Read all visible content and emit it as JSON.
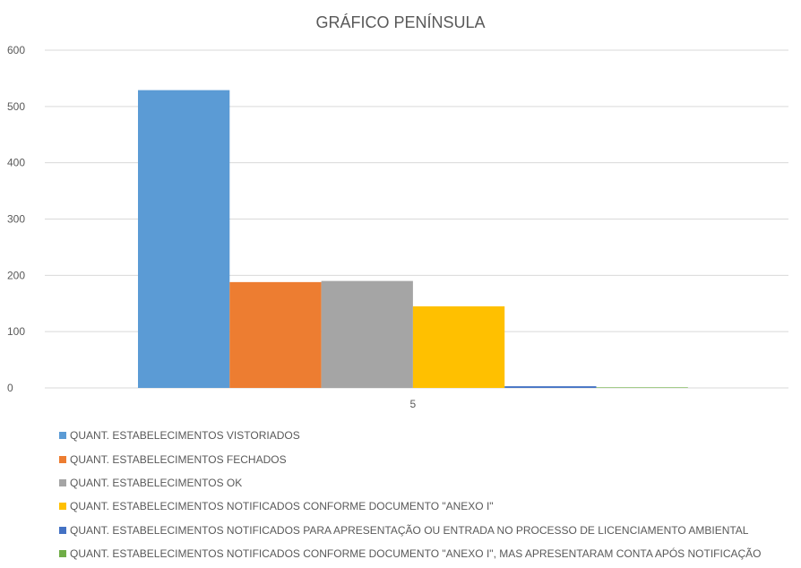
{
  "chart_data": {
    "type": "bar",
    "title": "GRÁFICO PENÍNSULA",
    "categories": [
      "5"
    ],
    "ylim": [
      0,
      600
    ],
    "yticks": [
      0,
      100,
      200,
      300,
      400,
      500,
      600
    ],
    "grid": true,
    "legend_position": "bottom",
    "series": [
      {
        "name": "QUANT. ESTABELECIMENTOS VISTORIADOS",
        "values": [
          529
        ],
        "color": "#5b9bd5"
      },
      {
        "name": "QUANT. ESTABELECIMENTOS FECHADOS",
        "values": [
          188
        ],
        "color": "#ed7d31"
      },
      {
        "name": "QUANT. ESTABELECIMENTOS OK",
        "values": [
          190
        ],
        "color": "#a5a5a5"
      },
      {
        "name": "QUANT. ESTABELECIMENTOS NOTIFICADOS CONFORME DOCUMENTO \"ANEXO I\"",
        "values": [
          145
        ],
        "color": "#ffc000"
      },
      {
        "name": "QUANT. ESTABELECIMENTOS NOTIFICADOS PARA APRESENTAÇÃO OU ENTRADA NO PROCESSO DE LICENCIAMENTO AMBIENTAL",
        "values": [
          3
        ],
        "color": "#4472c4"
      },
      {
        "name": "QUANT. ESTABELECIMENTOS NOTIFICADOS CONFORME DOCUMENTO \"ANEXO I\", MAS APRESENTARAM CONTA APÓS NOTIFICAÇÃO",
        "values": [
          1
        ],
        "color": "#70ad47"
      }
    ]
  }
}
